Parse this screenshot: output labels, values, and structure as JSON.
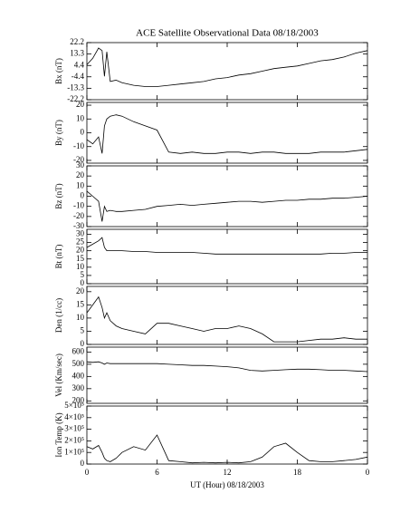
{
  "chart_data": [
    {
      "type": "line",
      "title": "ACE Satellite Observational Data   08/18/2003",
      "ylabel": "Bx (nT)",
      "x": [
        0,
        0.5,
        1,
        1.3,
        1.5,
        1.7,
        2,
        2.5,
        3,
        4,
        5,
        6,
        7,
        8,
        9,
        10,
        11,
        12,
        13,
        14,
        15,
        16,
        17,
        18,
        19,
        20,
        21,
        22,
        23,
        24
      ],
      "series": [
        {
          "color": "#000000",
          "values": [
            5,
            10,
            18,
            16,
            -4,
            15,
            -8,
            -7,
            -9,
            -11,
            -12,
            -12,
            -11,
            -10,
            -9,
            -8,
            -6,
            -5,
            -3,
            -2,
            0,
            2,
            3,
            4,
            6,
            8,
            9,
            11,
            14,
            16
          ]
        }
      ],
      "ylim": [
        -22.2,
        22.2
      ],
      "yticks": [
        22.2,
        13.3,
        4.4,
        -4.4,
        -13.3,
        -22.2
      ]
    },
    {
      "type": "line",
      "ylabel": "By (nT)",
      "x": [
        0,
        0.5,
        1,
        1.3,
        1.5,
        1.7,
        2,
        2.5,
        3,
        4,
        5,
        6,
        7,
        8,
        9,
        10,
        11,
        12,
        13,
        14,
        15,
        16,
        17,
        18,
        19,
        20,
        21,
        22,
        23,
        24
      ],
      "series": [
        {
          "color": "#000000",
          "values": [
            -5,
            -8,
            -3,
            -15,
            5,
            10,
            12,
            13,
            12,
            8,
            5,
            2,
            -14,
            -15,
            -14,
            -15,
            -15,
            -14,
            -14,
            -15,
            -14,
            -14,
            -15,
            -15,
            -15,
            -14,
            -14,
            -14,
            -13,
            -12
          ]
        }
      ],
      "ylim": [
        -22,
        22
      ],
      "yticks": [
        -20,
        -10,
        0,
        10,
        20
      ]
    },
    {
      "type": "line",
      "ylabel": "Bz (nT)",
      "x": [
        0,
        0.5,
        1,
        1.3,
        1.5,
        1.7,
        2,
        2.5,
        3,
        4,
        5,
        6,
        7,
        8,
        9,
        10,
        11,
        12,
        13,
        14,
        15,
        16,
        17,
        18,
        19,
        20,
        21,
        22,
        23,
        24
      ],
      "series": [
        {
          "color": "#000000",
          "values": [
            5,
            0,
            -5,
            -25,
            -10,
            -15,
            -14,
            -15,
            -15,
            -14,
            -13,
            -10,
            -9,
            -8,
            -9,
            -8,
            -7,
            -6,
            -5,
            -5,
            -6,
            -5,
            -4,
            -4,
            -3,
            -3,
            -2,
            -2,
            -1,
            0
          ]
        }
      ],
      "ylim": [
        -30,
        30
      ],
      "yticks": [
        -30,
        -20,
        -10,
        0,
        10,
        20,
        30
      ]
    },
    {
      "type": "line",
      "ylabel": "Bt (nT)",
      "x": [
        0,
        0.5,
        1,
        1.3,
        1.5,
        1.7,
        2,
        2.5,
        3,
        4,
        5,
        6,
        7,
        8,
        9,
        10,
        11,
        12,
        13,
        14,
        15,
        16,
        17,
        18,
        19,
        20,
        21,
        22,
        23,
        24
      ],
      "series": [
        {
          "color": "#000000",
          "values": [
            22,
            24,
            26,
            28,
            22,
            20,
            20,
            20,
            20,
            19.5,
            19.5,
            19,
            19,
            19,
            19,
            18.5,
            18,
            18,
            18,
            18,
            18,
            18,
            18,
            18,
            18,
            18,
            18.5,
            18.5,
            19,
            19
          ]
        }
      ],
      "ylim": [
        0,
        33
      ],
      "yticks": [
        0,
        5,
        10,
        15,
        20,
        25,
        30
      ]
    },
    {
      "type": "line",
      "ylabel": "Den (1/cc)",
      "x": [
        0,
        0.5,
        1,
        1.3,
        1.5,
        1.7,
        2,
        2.5,
        3,
        4,
        5,
        6,
        7,
        8,
        9,
        10,
        11,
        12,
        13,
        14,
        15,
        16,
        17,
        18,
        19,
        20,
        21,
        22,
        23,
        24
      ],
      "series": [
        {
          "color": "#000000",
          "values": [
            12,
            15,
            18,
            14,
            10,
            12,
            9,
            7,
            6,
            5,
            4,
            8,
            8,
            7,
            6,
            5,
            6,
            6,
            7,
            6,
            4,
            1,
            1,
            1,
            1.5,
            2,
            2,
            2.5,
            2,
            2
          ]
        }
      ],
      "ylim": [
        0,
        22
      ],
      "yticks": [
        0,
        5,
        10,
        15,
        20
      ]
    },
    {
      "type": "line",
      "ylabel": "Vel (Km/sec)",
      "x": [
        0,
        0.5,
        1,
        1.3,
        1.5,
        1.7,
        2,
        2.5,
        3,
        4,
        5,
        6,
        7,
        8,
        9,
        10,
        11,
        12,
        13,
        14,
        15,
        16,
        17,
        18,
        19,
        20,
        21,
        22,
        23,
        24
      ],
      "series": [
        {
          "color": "#000000",
          "values": [
            520,
            515,
            520,
            510,
            500,
            510,
            505,
            505,
            505,
            505,
            505,
            505,
            500,
            495,
            490,
            490,
            485,
            480,
            470,
            450,
            445,
            450,
            455,
            460,
            460,
            455,
            450,
            450,
            445,
            440
          ]
        }
      ],
      "ylim": [
        180,
        640
      ],
      "yticks": [
        200,
        300,
        400,
        500,
        600
      ]
    },
    {
      "type": "line",
      "ylabel": "Ion Temp (K)",
      "xlabel": "UT (Hour)  08/18/2003",
      "x": [
        0,
        0.5,
        1,
        1.3,
        1.5,
        1.7,
        2,
        2.5,
        3,
        4,
        5,
        6,
        7,
        8,
        9,
        10,
        11,
        12,
        13,
        14,
        15,
        16,
        17,
        18,
        19,
        20,
        21,
        22,
        23,
        24
      ],
      "series": [
        {
          "color": "#000000",
          "values": [
            150000,
            130000,
            160000,
            100000,
            50000,
            30000,
            20000,
            50000,
            100000,
            150000,
            120000,
            250000,
            30000,
            20000,
            10000,
            15000,
            10000,
            15000,
            10000,
            20000,
            60000,
            150000,
            180000,
            100000,
            30000,
            20000,
            20000,
            30000,
            40000,
            60000
          ]
        }
      ],
      "ylim": [
        0,
        500000
      ],
      "yticks": [
        0,
        {
          "value": 100000,
          "label": "1×10⁵"
        },
        {
          "value": 200000,
          "label": "2×10⁵"
        },
        {
          "value": 300000,
          "label": "3×10⁵"
        },
        {
          "value": 400000,
          "label": "4×10⁵"
        },
        {
          "value": 500000,
          "label": "5×10⁵"
        }
      ],
      "xlim": [
        0,
        24
      ],
      "xticks": [
        0,
        6,
        12,
        18,
        {
          "value": 24,
          "label": "0"
        }
      ]
    }
  ]
}
